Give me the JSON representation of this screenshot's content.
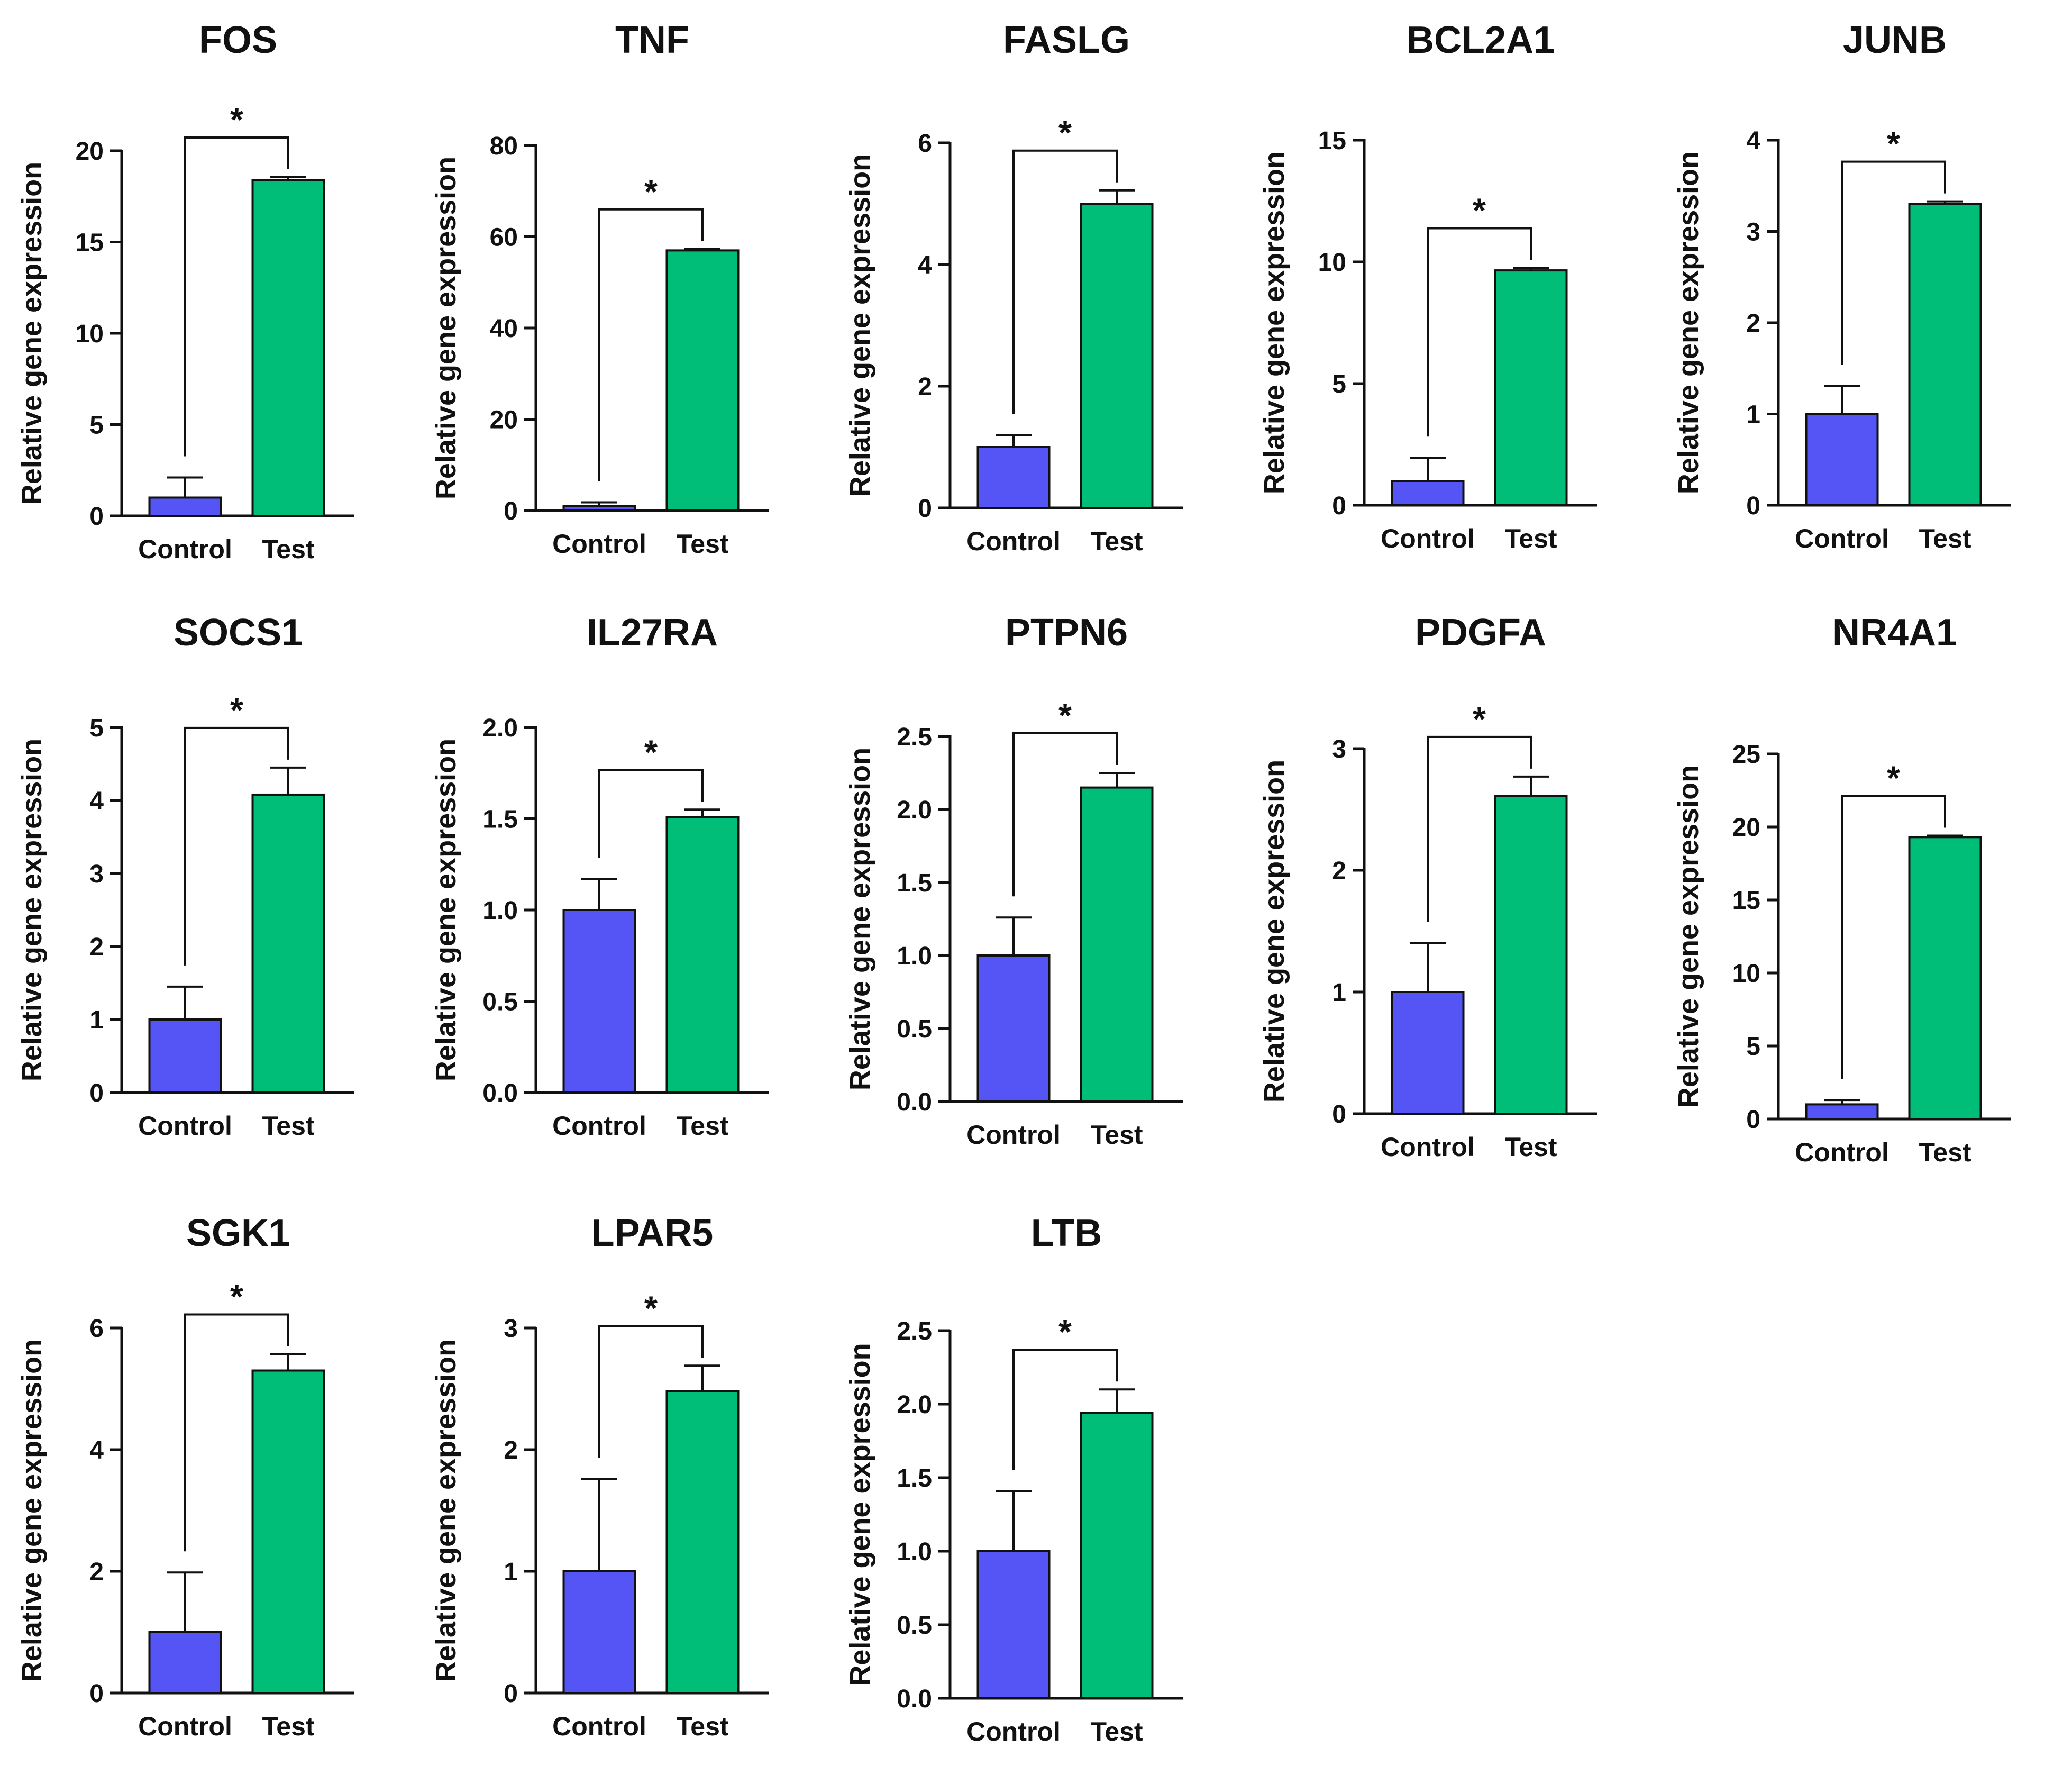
{
  "colors": {
    "control": "#5555F5",
    "test": "#00BE78",
    "axis": "#111111"
  },
  "chart_data": [
    {
      "type": "bar",
      "title": "FOS",
      "ylabel": "Relative gene expression",
      "categories": [
        "Control",
        "Test"
      ],
      "values": [
        1.0,
        18.4
      ],
      "errors": [
        1.1,
        0.15
      ],
      "ylim": [
        0,
        20
      ],
      "yticks": [
        "0",
        "5",
        "10",
        "15",
        "20"
      ],
      "significance": "*"
    },
    {
      "type": "bar",
      "title": "TNF",
      "ylabel": "Relative gene expression",
      "categories": [
        "Control",
        "Test"
      ],
      "values": [
        1.0,
        57.0
      ],
      "errors": [
        0.8,
        0.3
      ],
      "ylim": [
        0,
        80
      ],
      "yticks": [
        "0",
        "20",
        "40",
        "60",
        "80"
      ],
      "significance": "*"
    },
    {
      "type": "bar",
      "title": "FASLG",
      "ylabel": "Relative gene expression",
      "categories": [
        "Control",
        "Test"
      ],
      "values": [
        1.0,
        5.0
      ],
      "errors": [
        0.2,
        0.22
      ],
      "ylim": [
        0,
        6
      ],
      "yticks": [
        "0",
        "2",
        "4",
        "6"
      ],
      "significance": "*"
    },
    {
      "type": "bar",
      "title": "BCL2A1",
      "ylabel": "Relative gene expression",
      "categories": [
        "Control",
        "Test"
      ],
      "values": [
        1.0,
        9.65
      ],
      "errors": [
        0.95,
        0.1
      ],
      "ylim": [
        0,
        15
      ],
      "yticks": [
        "0",
        "5",
        "10",
        "15"
      ],
      "significance": "*"
    },
    {
      "type": "bar",
      "title": "JUNB",
      "ylabel": "Relative gene expression",
      "categories": [
        "Control",
        "Test"
      ],
      "values": [
        1.0,
        3.3
      ],
      "errors": [
        0.31,
        0.03
      ],
      "ylim": [
        0,
        4
      ],
      "yticks": [
        "0",
        "1",
        "2",
        "3",
        "4"
      ],
      "significance": "*"
    },
    {
      "type": "bar",
      "title": "SOCS1",
      "ylabel": "Relative gene expression",
      "categories": [
        "Control",
        "Test"
      ],
      "values": [
        1.0,
        4.08
      ],
      "errors": [
        0.45,
        0.37
      ],
      "ylim": [
        0,
        5
      ],
      "yticks": [
        "0",
        "1",
        "2",
        "3",
        "4",
        "5"
      ],
      "significance": "*"
    },
    {
      "type": "bar",
      "title": "IL27RA",
      "ylabel": "Relative gene expression",
      "categories": [
        "Control",
        "Test"
      ],
      "values": [
        1.0,
        1.51
      ],
      "errors": [
        0.17,
        0.04
      ],
      "ylim": [
        0,
        2.0
      ],
      "yticks": [
        "0.0",
        "0.5",
        "1.0",
        "1.5",
        "2.0"
      ],
      "significance": "*"
    },
    {
      "type": "bar",
      "title": "PTPN6",
      "ylabel": "Relative gene expression",
      "categories": [
        "Control",
        "Test"
      ],
      "values": [
        1.0,
        2.15
      ],
      "errors": [
        0.26,
        0.1
      ],
      "ylim": [
        0,
        2.5
      ],
      "yticks": [
        "0.0",
        "0.5",
        "1.0",
        "1.5",
        "2.0",
        "2.5"
      ],
      "significance": "*"
    },
    {
      "type": "bar",
      "title": "PDGFA",
      "ylabel": "Relative gene expression",
      "categories": [
        "Control",
        "Test"
      ],
      "values": [
        1.0,
        2.61
      ],
      "errors": [
        0.4,
        0.16
      ],
      "ylim": [
        0,
        3
      ],
      "yticks": [
        "0",
        "1",
        "2",
        "3"
      ],
      "significance": "*"
    },
    {
      "type": "bar",
      "title": "NR4A1",
      "ylabel": "Relative gene expression",
      "categories": [
        "Control",
        "Test"
      ],
      "values": [
        1.0,
        19.3
      ],
      "errors": [
        0.3,
        0.1
      ],
      "ylim": [
        0,
        25
      ],
      "yticks": [
        "0",
        "5",
        "10",
        "15",
        "20",
        "25"
      ],
      "significance": "*"
    },
    {
      "type": "bar",
      "title": "SGK1",
      "ylabel": "Relative gene expression",
      "categories": [
        "Control",
        "Test"
      ],
      "values": [
        1.0,
        5.3
      ],
      "errors": [
        0.98,
        0.27
      ],
      "ylim": [
        0,
        6
      ],
      "yticks": [
        "0",
        "2",
        "4",
        "6"
      ],
      "significance": "*"
    },
    {
      "type": "bar",
      "title": "LPAR5",
      "ylabel": "Relative gene expression",
      "categories": [
        "Control",
        "Test"
      ],
      "values": [
        1.0,
        2.48
      ],
      "errors": [
        0.76,
        0.21
      ],
      "ylim": [
        0,
        3
      ],
      "yticks": [
        "0",
        "1",
        "2",
        "3"
      ],
      "significance": "*"
    },
    {
      "type": "bar",
      "title": "LTB",
      "ylabel": "Relative gene expression",
      "categories": [
        "Control",
        "Test"
      ],
      "values": [
        1.0,
        1.94
      ],
      "errors": [
        0.41,
        0.16
      ],
      "ylim": [
        0,
        2.5
      ],
      "yticks": [
        "0.0",
        "0.5",
        "1.0",
        "1.5",
        "2.0",
        "2.5"
      ],
      "significance": "*"
    }
  ]
}
